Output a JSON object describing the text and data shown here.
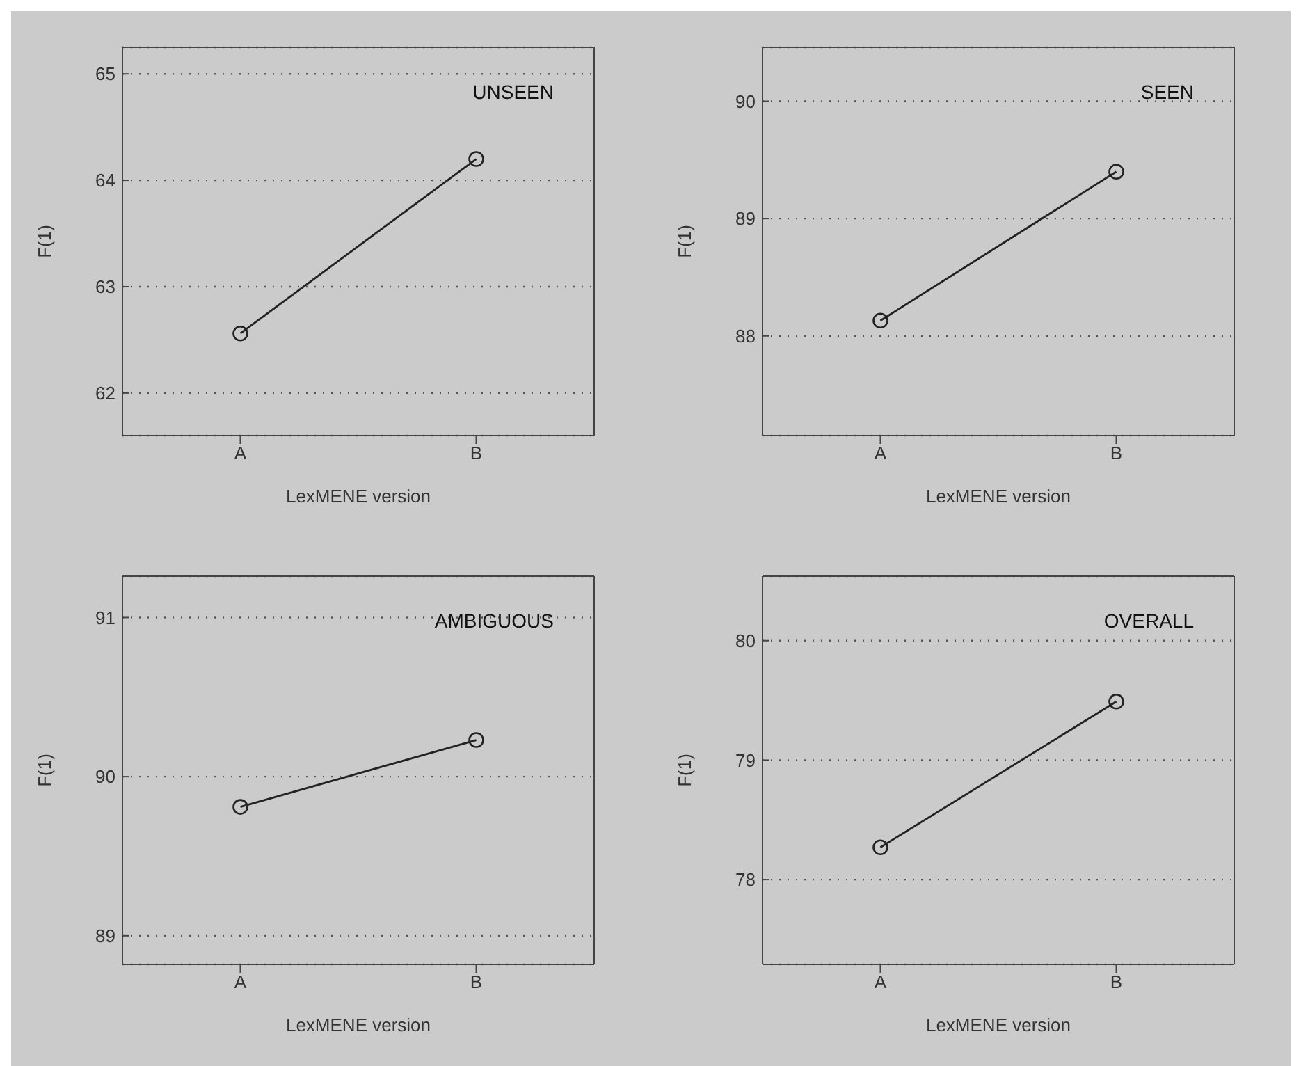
{
  "chart_data": [
    {
      "type": "line",
      "title": "UNSEEN",
      "xlabel": "LexMENE version",
      "ylabel": "F(1)",
      "categories": [
        "A",
        "B"
      ],
      "series": [
        {
          "color": "#222222",
          "values": [
            62.56,
            64.2
          ]
        }
      ],
      "ylim": [
        61.6,
        65.25
      ],
      "yticks": [
        62,
        63,
        64,
        65
      ],
      "grid": "y",
      "marker": "circle",
      "line_style": "solid"
    },
    {
      "type": "line",
      "title": "SEEN",
      "xlabel": "LexMENE version",
      "ylabel": "F(1)",
      "categories": [
        "A",
        "B"
      ],
      "series": [
        {
          "color": "#222222",
          "values": [
            88.13,
            89.4
          ]
        }
      ],
      "ylim": [
        87.15,
        90.46
      ],
      "yticks": [
        88,
        89,
        90
      ],
      "grid": "y",
      "marker": "circle",
      "line_style": "solid"
    },
    {
      "type": "line",
      "title": "AMBIGUOUS",
      "xlabel": "LexMENE version",
      "ylabel": "F(1)",
      "categories": [
        "A",
        "B"
      ],
      "series": [
        {
          "color": "#222222",
          "values": [
            89.81,
            90.23
          ]
        }
      ],
      "ylim": [
        88.82,
        91.26
      ],
      "yticks": [
        89,
        90,
        91
      ],
      "grid": "y",
      "marker": "circle",
      "line_style": "solid"
    },
    {
      "type": "line",
      "title": "OVERALL",
      "xlabel": "LexMENE version",
      "ylabel": "F(1)",
      "categories": [
        "A",
        "B"
      ],
      "series": [
        {
          "color": "#222222",
          "values": [
            78.27,
            79.49
          ]
        }
      ],
      "ylim": [
        77.29,
        80.54
      ],
      "yticks": [
        78,
        79,
        80
      ],
      "grid": "y",
      "marker": "circle",
      "line_style": "solid"
    }
  ]
}
